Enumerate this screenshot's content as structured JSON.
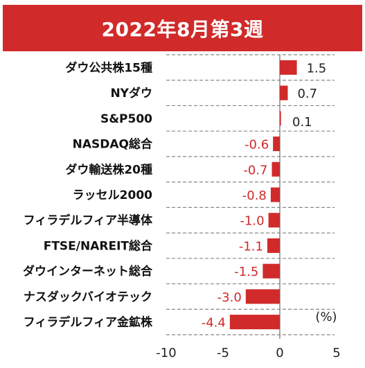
{
  "header": {
    "title": "2022年8月第3週"
  },
  "colors": {
    "banner": "#d12a2a",
    "bar": "#d12a2a",
    "negative_text": "#d12a2a",
    "positive_text": "#222222",
    "grid": "#888888"
  },
  "chart_data": {
    "type": "bar",
    "orientation": "horizontal",
    "title": "2022年8月第3週",
    "unit": "(%)",
    "categories": [
      "ダウ公共株15種",
      "NYダウ",
      "S&P500",
      "NASDAQ総合",
      "ダウ輸送株20種",
      "ラッセル2000",
      "フィラデルフィア半導体",
      "FTSE/NAREIT総合",
      "ダウインターネット総合",
      "ナスダックバイオテック",
      "フィラデルフィア金鉱株"
    ],
    "values": [
      1.5,
      0.7,
      0.1,
      -0.6,
      -0.7,
      -0.8,
      -1.0,
      -1.1,
      -1.5,
      -3.0,
      -4.4
    ],
    "value_labels": [
      "1.5",
      "0.7",
      "0.1",
      "-0.6",
      "-0.7",
      "-0.8",
      "-1.0",
      "-1.1",
      "-1.5",
      "-3.0",
      "-4.4"
    ],
    "xlim": [
      -10,
      5
    ],
    "xticks": [
      -10,
      -5,
      0,
      5
    ],
    "xtick_labels": [
      "-10",
      "-5",
      "0",
      "5"
    ],
    "grid": "horizontal dashed"
  }
}
